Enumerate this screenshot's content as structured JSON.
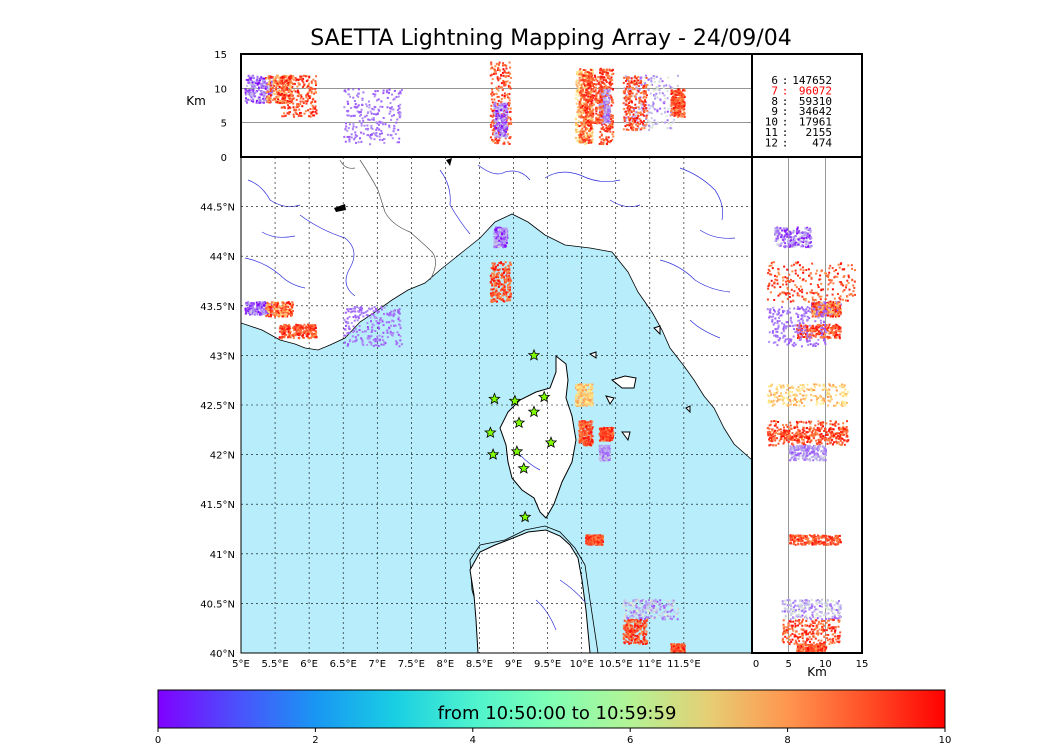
{
  "chart_data": {
    "type": "scatter",
    "title": "SAETTA Lightning Mapping Array - 24/09/04",
    "map": {
      "x_ticks": [
        "5°E",
        "5.5°E",
        "6°E",
        "6.5°E",
        "7°E",
        "7.5°E",
        "8°E",
        "8.5°E",
        "9°E",
        "9.5°E",
        "10°E",
        "10.5°E",
        "11°E",
        "11.5°E"
      ],
      "y_ticks": [
        "40°N",
        "40.5°N",
        "41°N",
        "41.5°N",
        "42°N",
        "42.5°N",
        "43°N",
        "43.5°N",
        "44°N",
        "44.5°N"
      ],
      "lon_range": [
        5,
        12.5
      ],
      "lat_range": [
        40,
        45
      ]
    },
    "altitude_panel": {
      "ylabel": "Km",
      "y_ticks": [
        "0",
        "5",
        "10",
        "15"
      ],
      "ylim": [
        0,
        15
      ]
    },
    "side_panel": {
      "xlabel": "Km",
      "x_ticks": [
        "0",
        "5",
        "10",
        "15"
      ],
      "xlim": [
        0,
        15
      ]
    },
    "station_counts": [
      {
        "n": "6",
        "count": "147652",
        "color": "#000000"
      },
      {
        "n": "7",
        "count": "96072",
        "color": "#ff0000"
      },
      {
        "n": "8",
        "count": "59310",
        "color": "#000000"
      },
      {
        "n": "9",
        "count": "34642",
        "color": "#000000"
      },
      {
        "n": "10",
        "count": "17961",
        "color": "#000000"
      },
      {
        "n": "11",
        "count": "2155",
        "color": "#000000"
      },
      {
        "n": "12",
        "count": "474",
        "color": "#000000"
      }
    ],
    "colorbar": {
      "label": "from 10:50:00 to 10:59:59",
      "ticks": [
        "0",
        "2",
        "4",
        "6",
        "8",
        "10"
      ],
      "range": [
        0,
        10
      ]
    },
    "stations": [
      {
        "lon": 9.3,
        "lat": 43.0
      },
      {
        "lon": 8.72,
        "lat": 42.56
      },
      {
        "lon": 9.02,
        "lat": 42.54
      },
      {
        "lon": 9.45,
        "lat": 42.58
      },
      {
        "lon": 9.3,
        "lat": 42.43
      },
      {
        "lon": 9.08,
        "lat": 42.32
      },
      {
        "lon": 8.66,
        "lat": 42.22
      },
      {
        "lon": 9.55,
        "lat": 42.12
      },
      {
        "lon": 8.7,
        "lat": 42.0
      },
      {
        "lon": 9.05,
        "lat": 42.03
      },
      {
        "lon": 9.15,
        "lat": 41.86
      },
      {
        "lon": 9.17,
        "lat": 41.37
      }
    ],
    "clusters": [
      {
        "lon": [
          5.05,
          5.45
        ],
        "lat": [
          43.42,
          43.55
        ],
        "alt": [
          8,
          12
        ],
        "time": [
          0,
          3
        ]
      },
      {
        "lon": [
          5.35,
          5.75
        ],
        "lat": [
          43.4,
          43.55
        ],
        "alt": [
          8,
          12
        ],
        "time": [
          7,
          10
        ]
      },
      {
        "lon": [
          5.55,
          6.1
        ],
        "lat": [
          43.18,
          43.32
        ],
        "alt": [
          6,
          12
        ],
        "time": [
          8,
          10
        ]
      },
      {
        "lon": [
          6.5,
          7.35
        ],
        "lat": [
          43.1,
          43.5
        ],
        "alt": [
          2,
          10
        ],
        "time": [
          1,
          2
        ]
      },
      {
        "lon": [
          8.65,
          8.95
        ],
        "lat": [
          43.55,
          43.95
        ],
        "alt": [
          2,
          14
        ],
        "time": [
          8,
          10
        ]
      },
      {
        "lon": [
          8.7,
          8.9
        ],
        "lat": [
          44.1,
          44.3
        ],
        "alt": [
          3,
          8
        ],
        "time": [
          0,
          3
        ]
      },
      {
        "lon": [
          9.9,
          10.15
        ],
        "lat": [
          42.5,
          42.72
        ],
        "alt": [
          2,
          13
        ],
        "time": [
          6,
          8
        ]
      },
      {
        "lon": [
          9.95,
          10.15
        ],
        "lat": [
          42.1,
          42.35
        ],
        "alt": [
          2,
          13
        ],
        "time": [
          8,
          10
        ]
      },
      {
        "lon": [
          10.25,
          10.45
        ],
        "lat": [
          42.15,
          42.28
        ],
        "alt": [
          2,
          13
        ],
        "time": [
          8,
          10
        ]
      },
      {
        "lon": [
          10.25,
          10.4
        ],
        "lat": [
          41.95,
          42.1
        ],
        "alt": [
          5,
          10
        ],
        "time": [
          1,
          3
        ]
      },
      {
        "lon": [
          10.05,
          10.3
        ],
        "lat": [
          41.1,
          41.2
        ],
        "alt": [
          5,
          12
        ],
        "time": [
          8,
          10
        ]
      },
      {
        "lon": [
          10.6,
          11.4
        ],
        "lat": [
          40.35,
          40.55
        ],
        "alt": [
          4,
          12
        ],
        "time": [
          1,
          4
        ]
      },
      {
        "lon": [
          10.6,
          10.95
        ],
        "lat": [
          40.1,
          40.35
        ],
        "alt": [
          4,
          12
        ],
        "time": [
          8,
          10
        ]
      },
      {
        "lon": [
          11.3,
          11.5
        ],
        "lat": [
          40.0,
          40.1
        ],
        "alt": [
          6,
          10
        ],
        "time": [
          8,
          10
        ]
      }
    ]
  }
}
